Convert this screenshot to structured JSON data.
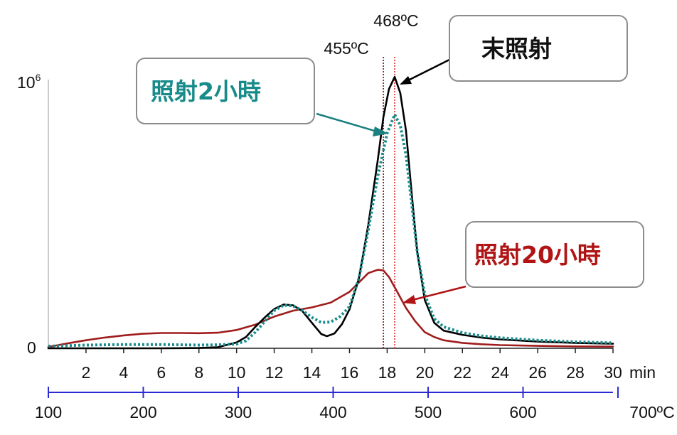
{
  "chart_data": {
    "type": "line",
    "x_axis": {
      "unit": "min",
      "ticks": [
        2,
        4,
        6,
        8,
        10,
        12,
        14,
        16,
        18,
        20,
        22,
        24,
        26,
        28,
        30
      ],
      "xlim": [
        0,
        30
      ]
    },
    "secondary_x_axis": {
      "unit": "ºC",
      "tick_labels": [
        "100",
        "200",
        "300",
        "400",
        "500",
        "600",
        "700ºC"
      ]
    },
    "y_axis": {
      "tick_labels": [
        "0",
        "10"
      ],
      "tick_superscript": "6",
      "ylim": [
        0,
        1000000
      ]
    },
    "markers": [
      {
        "label": "455ºC",
        "x": 17.8,
        "color": "#7a1010"
      },
      {
        "label": "468ºC",
        "x": 18.4,
        "color": "#e03030"
      }
    ],
    "series": [
      {
        "name": "末照射",
        "color": "#000000",
        "style": "solid",
        "x": [
          0,
          2,
          4,
          6,
          8,
          9,
          10,
          10.5,
          11,
          11.5,
          12,
          12.5,
          13,
          13.5,
          14,
          14.5,
          14.8,
          15.2,
          15.6,
          16,
          16.5,
          17,
          17.5,
          17.8,
          18.1,
          18.4,
          18.7,
          19,
          19.3,
          19.6,
          20,
          20.5,
          21,
          22,
          23,
          24,
          26,
          28,
          30
        ],
        "y": [
          0,
          0,
          0,
          0,
          1000,
          4000,
          22000,
          42000,
          80000,
          115000,
          146000,
          163000,
          160000,
          138000,
          95000,
          53000,
          45000,
          55000,
          90000,
          145000,
          260000,
          460000,
          700000,
          860000,
          965000,
          1010000,
          950000,
          810000,
          580000,
          360000,
          180000,
          95000,
          66000,
          50000,
          40000,
          33000,
          25000,
          20000,
          17000
        ]
      },
      {
        "name": "照射2小時",
        "color": "#1a8c8c",
        "style": "dotted",
        "x": [
          0,
          2,
          4,
          6,
          8,
          9,
          10,
          10.5,
          11,
          11.5,
          12,
          12.5,
          13,
          13.5,
          14,
          14.5,
          15,
          15.5,
          16,
          16.5,
          17,
          17.5,
          18,
          18.4,
          18.7,
          19,
          19.3,
          19.6,
          20,
          20.5,
          21,
          22,
          23,
          24,
          26,
          28,
          30
        ],
        "y": [
          8000,
          12000,
          14000,
          14000,
          12000,
          13000,
          16000,
          28000,
          60000,
          100000,
          140000,
          160000,
          158000,
          140000,
          115000,
          96000,
          98000,
          118000,
          155000,
          260000,
          440000,
          640000,
          800000,
          870000,
          830000,
          720000,
          540000,
          360000,
          200000,
          110000,
          80000,
          58000,
          46000,
          39000,
          30000,
          24000,
          20000
        ]
      },
      {
        "name": "照射20小時",
        "color": "#a01c1c",
        "style": "solid",
        "x": [
          0,
          1,
          2,
          3,
          4,
          5,
          6,
          7,
          8,
          9,
          10,
          11,
          12,
          13,
          14,
          15,
          16,
          16.5,
          17,
          17.5,
          17.8,
          18.1,
          18.5,
          19,
          19.5,
          20,
          20.5,
          21,
          22,
          23,
          24,
          26,
          28,
          30
        ],
        "y": [
          5000,
          18000,
          30000,
          40000,
          48000,
          54000,
          57000,
          57000,
          56000,
          58000,
          68000,
          88000,
          118000,
          140000,
          152000,
          170000,
          210000,
          245000,
          280000,
          292000,
          290000,
          265000,
          215000,
          150000,
          100000,
          60000,
          42000,
          30000,
          20000,
          15000,
          12000,
          9000,
          7000,
          6000
        ]
      }
    ],
    "annotations": [
      {
        "text": "照射2小時",
        "color": "#178a8a",
        "points_to": "照射2小時"
      },
      {
        "text": "末照射",
        "color": "#111111",
        "points_to": "末照射"
      },
      {
        "text": "照射20小時",
        "color": "#b01414",
        "points_to": "照射20小時"
      }
    ],
    "grid": false,
    "legend": "none"
  }
}
